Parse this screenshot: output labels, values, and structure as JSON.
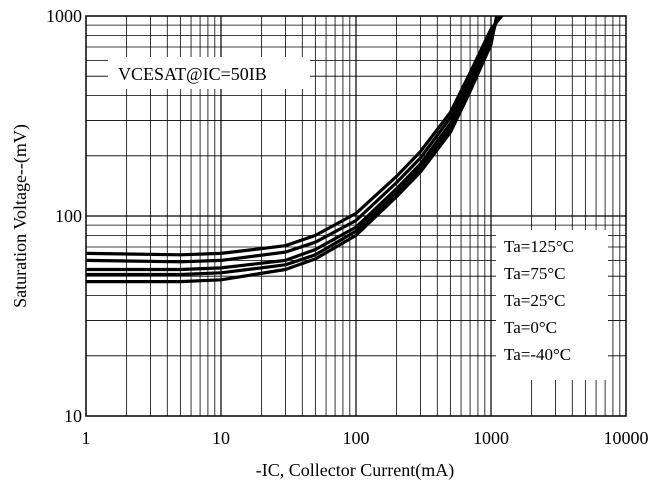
{
  "chart_data": {
    "type": "line",
    "title": "",
    "xlabel": "-IC, Collector Current(mA)",
    "ylabel": "Saturation Voltage--(mV)",
    "x_scale": "log",
    "y_scale": "log",
    "xlim": [
      1,
      10000
    ],
    "ylim": [
      10,
      1000
    ],
    "x_ticks": [
      1,
      10,
      100,
      1000,
      10000
    ],
    "x_tick_labels": [
      "1",
      "10",
      "100",
      "1000",
      "10000"
    ],
    "y_ticks": [
      10,
      100,
      1000
    ],
    "y_tick_labels": [
      "10",
      "100",
      "1000"
    ],
    "grid": true,
    "annotation": "VCESAT@IC=50IB",
    "legend_placement": "right",
    "legend": [
      "Ta=125°C",
      "Ta=75°C",
      "Ta=25°C",
      "Ta=0°C",
      "Ta=-40°C"
    ],
    "series": [
      {
        "name": "Ta=125°C",
        "x": [
          1,
          5,
          10,
          30,
          50,
          100,
          200,
          300,
          500,
          700,
          1000,
          1200
        ],
        "y": [
          65,
          64,
          65,
          71,
          80,
          103,
          158,
          210,
          330,
          520,
          860,
          1000
        ]
      },
      {
        "name": "Ta=75°C",
        "x": [
          1,
          5,
          10,
          30,
          50,
          100,
          200,
          300,
          500,
          700,
          1000,
          1150
        ],
        "y": [
          60,
          59,
          60,
          66,
          74,
          95,
          147,
          195,
          310,
          490,
          820,
          1000
        ]
      },
      {
        "name": "Ta=25°C",
        "x": [
          1,
          5,
          10,
          30,
          50,
          100,
          200,
          300,
          500,
          700,
          1000,
          1130
        ],
        "y": [
          54,
          54,
          55,
          60,
          68,
          88,
          137,
          182,
          290,
          460,
          780,
          1000
        ]
      },
      {
        "name": "Ta=0°C",
        "x": [
          1,
          5,
          10,
          30,
          50,
          100,
          200,
          300,
          500,
          700,
          1000,
          1110
        ],
        "y": [
          51,
          51,
          52,
          57,
          64,
          84,
          130,
          174,
          275,
          440,
          750,
          1000
        ]
      },
      {
        "name": "Ta=-40°C",
        "x": [
          1,
          5,
          10,
          30,
          50,
          100,
          200,
          300,
          500,
          700,
          1000,
          1100
        ],
        "y": [
          47,
          47,
          48,
          54,
          61,
          80,
          125,
          166,
          262,
          420,
          720,
          1000
        ]
      }
    ]
  }
}
